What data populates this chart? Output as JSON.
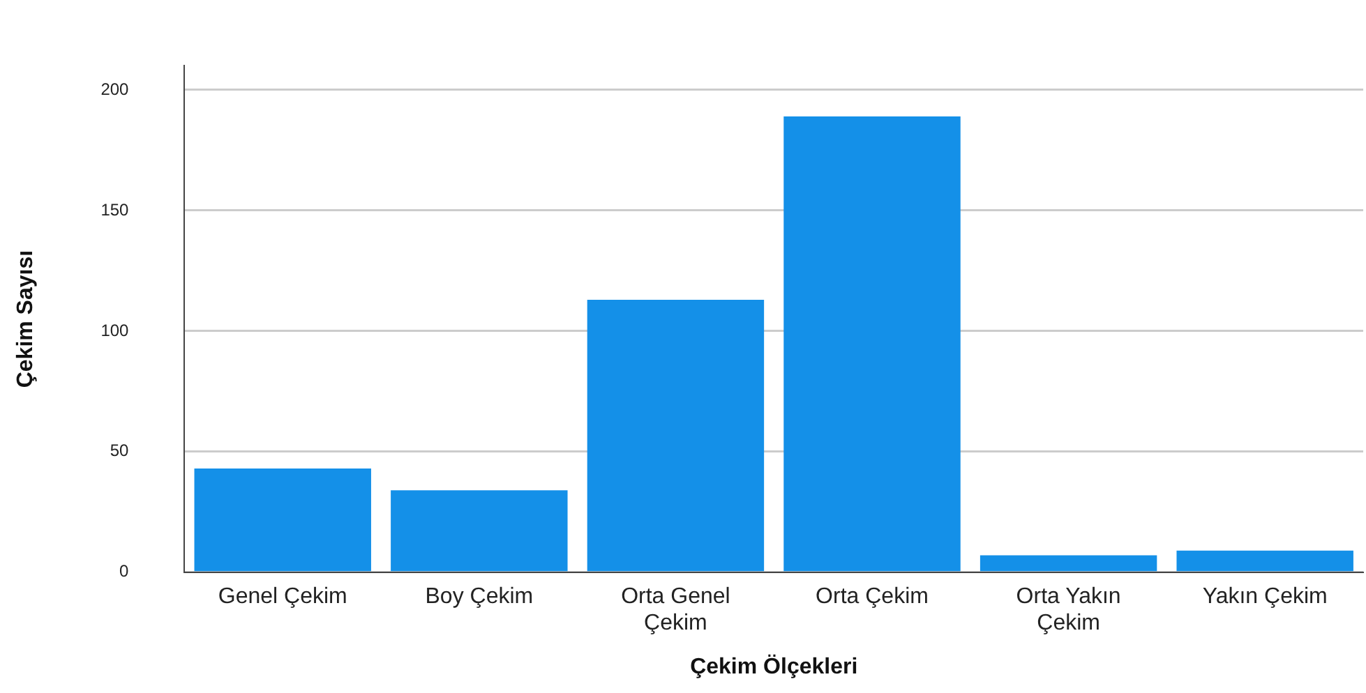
{
  "chart_data": {
    "type": "bar",
    "xlabel": "Çekim Ölçekleri",
    "ylabel": "Çekim Sayısı",
    "categories": [
      "Genel Çekim",
      "Boy Çekim",
      "Orta Genel Çekim",
      "Orta Çekim",
      "Orta Yakın Çekim",
      "Yakın Çekim"
    ],
    "values": [
      43,
      34,
      113,
      189,
      7,
      9
    ],
    "color": "#1490e8",
    "ylim": [
      0,
      210
    ],
    "yticks": [
      0,
      50,
      100,
      150,
      200
    ],
    "grid": "y"
  }
}
